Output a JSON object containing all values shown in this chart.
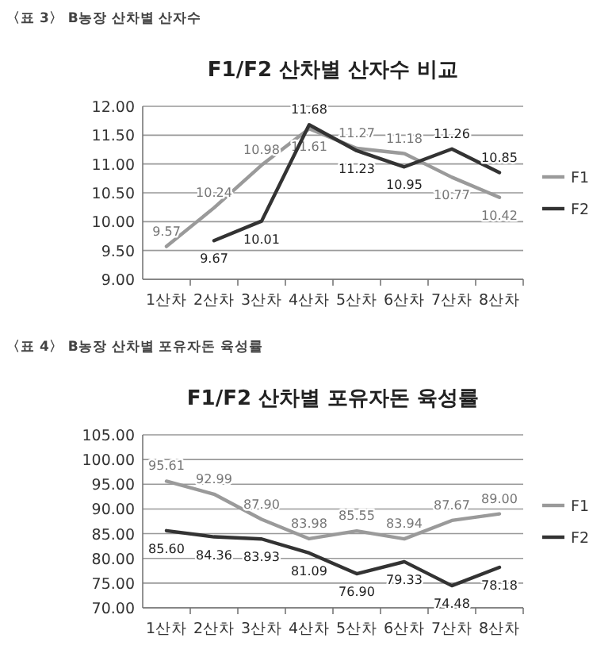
{
  "chart_data": [
    {
      "type": "line",
      "title": "F1/F2 산차별 산자수 비교",
      "annotations": [
        "〈표 3〉 B농장 산차별 산자수"
      ],
      "categories": [
        "1산차",
        "2산차",
        "3산차",
        "4산차",
        "5산차",
        "6산차",
        "7산차",
        "8산차"
      ],
      "series": [
        {
          "name": "F1",
          "color": "#9a9a9a",
          "values": [
            9.57,
            10.24,
            10.98,
            11.61,
            11.27,
            11.18,
            10.77,
            10.42
          ],
          "value_labels": [
            "9.57",
            "10.24",
            "10.98",
            "11.61",
            "11.27",
            "11.18",
            "10.77",
            "10.42"
          ]
        },
        {
          "name": "F2",
          "color": "#333333",
          "values": [
            null,
            9.67,
            10.01,
            11.68,
            11.23,
            10.95,
            11.26,
            10.85
          ],
          "value_labels": [
            null,
            "9.67",
            "10.01",
            "11.68",
            "11.23",
            "10.95",
            "11.26",
            "10.85"
          ]
        }
      ],
      "ylim": [
        9,
        12
      ],
      "yticks": [
        {
          "value": 9,
          "label": "9.00"
        },
        {
          "value": 9.5,
          "label": "9.50"
        },
        {
          "value": 10,
          "label": "10.00"
        },
        {
          "value": 10.5,
          "label": "10.50"
        },
        {
          "value": 11,
          "label": "11.00"
        },
        {
          "value": 11.5,
          "label": "11.50"
        },
        {
          "value": 12,
          "label": "12.00"
        }
      ],
      "grid": "y",
      "legend": "right"
    },
    {
      "type": "line",
      "title": "F1/F2 산차별 포유자돈 육성률",
      "annotations": [
        "〈표 4〉 B농장 산차별 포유자돈 육성률"
      ],
      "categories": [
        "1산차",
        "2산차",
        "3산차",
        "4산차",
        "5산차",
        "6산차",
        "7산차",
        "8산차"
      ],
      "series": [
        {
          "name": "F1",
          "color": "#9a9a9a",
          "values": [
            95.61,
            92.99,
            87.9,
            83.98,
            85.55,
            83.94,
            87.67,
            89.0
          ],
          "value_labels": [
            "95.61",
            "92.99",
            "87.90",
            "83.98",
            "85.55",
            "83.94",
            "87.67",
            "89.00"
          ]
        },
        {
          "name": "F2",
          "color": "#333333",
          "values": [
            85.6,
            84.36,
            83.93,
            81.09,
            76.9,
            79.33,
            74.48,
            78.18
          ],
          "value_labels": [
            "85.60",
            "84.36",
            "83.93",
            "81.09",
            "76.90",
            "79.33",
            "74.48",
            "78.18"
          ]
        }
      ],
      "ylim": [
        70,
        105
      ],
      "yticks": [
        {
          "value": 70,
          "label": "70.00"
        },
        {
          "value": 75,
          "label": "75.00"
        },
        {
          "value": 80,
          "label": "80.00"
        },
        {
          "value": 85,
          "label": "85.00"
        },
        {
          "value": 90,
          "label": "90.00"
        },
        {
          "value": 95,
          "label": "95.00"
        },
        {
          "value": 100,
          "label": "100.00"
        },
        {
          "value": 105,
          "label": "105.00"
        }
      ],
      "grid": "y",
      "legend": "right"
    }
  ]
}
